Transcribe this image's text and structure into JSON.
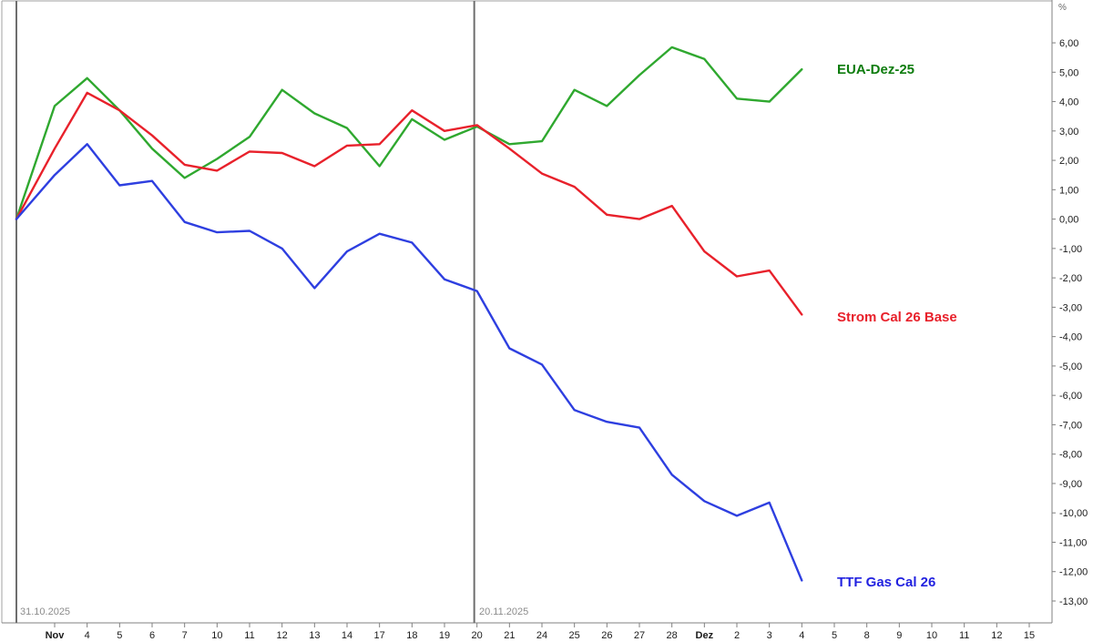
{
  "chart_data": {
    "type": "line",
    "title": "",
    "unit_label": "%",
    "grid": false,
    "background_color": "#ffffff",
    "frame_color": "#a0a0a0",
    "axis_color": "#808080",
    "tick_text_color": "#1a1a1a",
    "marker_line_color": "#6e6e6e",
    "annotation_text_color": "#8c8c8c",
    "ylim": [
      -13.7,
      7.4
    ],
    "y_ticks": [
      {
        "value": 6,
        "label": "6,00"
      },
      {
        "value": 5,
        "label": "5,00"
      },
      {
        "value": 4,
        "label": "4,00"
      },
      {
        "value": 3,
        "label": "3,00"
      },
      {
        "value": 2,
        "label": "2,00"
      },
      {
        "value": 1,
        "label": "1,00"
      },
      {
        "value": 0,
        "label": "0,00"
      },
      {
        "value": -1,
        "label": "-1,00"
      },
      {
        "value": -2,
        "label": "-2,00"
      },
      {
        "value": -3,
        "label": "-3,00"
      },
      {
        "value": -4,
        "label": "-4,00"
      },
      {
        "value": -5,
        "label": "-5,00"
      },
      {
        "value": -6,
        "label": "-6,00"
      },
      {
        "value": -7,
        "label": "-7,00"
      },
      {
        "value": -8,
        "label": "-8,00"
      },
      {
        "value": -9,
        "label": "-9,00"
      },
      {
        "value": -10,
        "label": "-10,00"
      },
      {
        "value": -11,
        "label": "-11,00"
      },
      {
        "value": -12,
        "label": "-12,00"
      },
      {
        "value": -13,
        "label": "-13,00"
      }
    ],
    "x_tick_labels": [
      "Nov",
      "4",
      "5",
      "6",
      "7",
      "10",
      "11",
      "12",
      "13",
      "14",
      "17",
      "18",
      "19",
      "20",
      "21",
      "24",
      "25",
      "26",
      "27",
      "28",
      "Dez",
      "2",
      "3",
      "4",
      "5",
      "8",
      "9",
      "10",
      "11",
      "12",
      "15"
    ],
    "month_ticks": [
      "Nov",
      "Dez"
    ],
    "vertical_markers": [
      {
        "label": "31.10.2025",
        "tick_index": -1
      },
      {
        "label": "20.11.2025",
        "tick_index": 13
      }
    ],
    "x_dates": [
      "31.10.2025",
      "03.11",
      "04.11",
      "05.11",
      "06.11",
      "07.11",
      "10.11",
      "11.11",
      "12.11",
      "13.11",
      "14.11",
      "17.11",
      "18.11",
      "19.11",
      "20.11",
      "21.11",
      "24.11",
      "25.11",
      "26.11",
      "27.11",
      "28.11",
      "01.12",
      "02.12",
      "03.12",
      "04.12"
    ],
    "series": [
      {
        "name": "EUA-Dez-25",
        "line_color": "#2fa82f",
        "label_color": "#0e7c0e",
        "values": [
          0.0,
          3.85,
          4.8,
          3.7,
          2.4,
          1.4,
          2.05,
          2.8,
          4.4,
          3.6,
          3.1,
          1.8,
          3.4,
          2.7,
          3.15,
          2.55,
          2.65,
          4.4,
          3.85,
          4.9,
          5.85,
          5.45,
          4.1,
          4.0,
          5.1
        ]
      },
      {
        "name": "Strom Cal 26 Base",
        "line_color": "#e8212b",
        "label_color": "#e8212b",
        "values": [
          0.0,
          2.4,
          4.3,
          3.7,
          2.85,
          1.85,
          1.65,
          2.3,
          2.25,
          1.8,
          2.5,
          2.55,
          3.7,
          3.0,
          3.2,
          2.4,
          1.55,
          1.1,
          0.15,
          0.0,
          0.45,
          -1.1,
          -1.95,
          -1.75,
          -3.25
        ]
      },
      {
        "name": "TTF Gas Cal 26",
        "line_color": "#2e3fe0",
        "label_color": "#2222e0",
        "values": [
          0.0,
          1.5,
          2.55,
          1.15,
          1.3,
          -0.1,
          -0.45,
          -0.4,
          -1.0,
          -2.35,
          -1.1,
          -0.5,
          -0.8,
          -2.05,
          -2.45,
          -4.4,
          -4.95,
          -6.5,
          -6.9,
          -7.1,
          -8.7,
          -9.6,
          -10.1,
          -9.65,
          -12.3
        ]
      }
    ]
  }
}
